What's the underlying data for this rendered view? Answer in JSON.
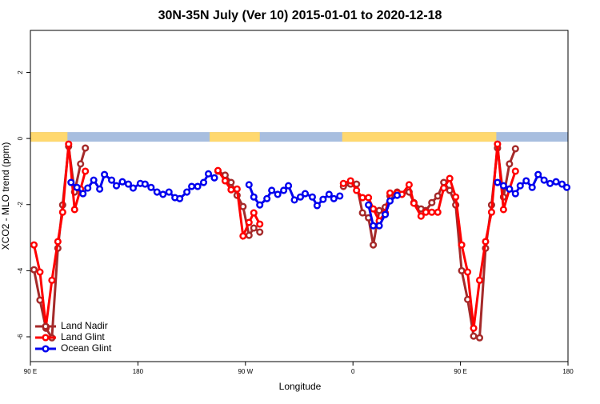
{
  "chart_data": {
    "type": "line",
    "title": "30N-35N July (Ver 10)   2015-01-01 to 2020-12-18",
    "x_label": "Longitude",
    "y_label": "XCO2 - MLO trend (ppm)",
    "xlim": [
      90,
      540
    ],
    "ylim": [
      -6.75,
      3.27
    ],
    "xticks": [
      {
        "value": 90,
        "label": "90 E"
      },
      {
        "value": 180,
        "label": "180"
      },
      {
        "value": 270,
        "label": "90 W"
      },
      {
        "value": 360,
        "label": "0"
      },
      {
        "value": 450,
        "label": "90 E"
      },
      {
        "value": 540,
        "label": "180"
      }
    ],
    "yticks": [
      -6,
      -4,
      -2,
      0,
      2
    ],
    "legend": "bottom-left",
    "land_mask": {
      "land_color": "#ffd86e",
      "ocean_color": "#a8bedf",
      "land": [
        [
          90,
          121
        ],
        [
          240,
          282
        ],
        [
          351,
          480
        ]
      ]
    },
    "series": [
      {
        "name": "Land Nadir",
        "color": "#a52a2a",
        "x": [
          93,
          98,
          103,
          108,
          113,
          117,
          122,
          127,
          132,
          136,
          null,
          247,
          253,
          258,
          263,
          268,
          273,
          277,
          282,
          null,
          352,
          358,
          363,
          368,
          373,
          377,
          382,
          387,
          391,
          397,
          401,
          407,
          411,
          417,
          421,
          426,
          431,
          436,
          441,
          446,
          451,
          456,
          461,
          466,
          471,
          476,
          481,
          486,
          491,
          496
        ],
        "values": [
          -3.97,
          -4.89,
          -5.74,
          -6.03,
          -3.32,
          -2.01,
          -0.24,
          -1.62,
          -0.77,
          -0.29,
          null,
          -0.99,
          -1.11,
          -1.33,
          -1.72,
          -2.06,
          -2.93,
          -2.71,
          -2.83,
          null,
          -1.45,
          -1.38,
          -1.38,
          -2.25,
          -2.4,
          -3.22,
          -2.18,
          -2.08,
          -1.74,
          -1.62,
          -1.69,
          -1.62,
          -1.94,
          -2.13,
          -2.18,
          -1.94,
          -1.74,
          -1.33,
          -1.57,
          -2.01,
          -4.0,
          -4.87,
          -5.98,
          -6.03,
          -3.32,
          -2.01,
          -0.29,
          -1.77,
          -0.77,
          -0.31
        ]
      },
      {
        "name": "Land Glint",
        "color": "#ff0000",
        "x": [
          93,
          98,
          103,
          108,
          113,
          117,
          122,
          127,
          132,
          136,
          null,
          247,
          253,
          258,
          263,
          268,
          273,
          277,
          282,
          null,
          352,
          358,
          363,
          368,
          373,
          377,
          382,
          387,
          391,
          397,
          401,
          407,
          411,
          417,
          421,
          426,
          431,
          436,
          441,
          446,
          451,
          456,
          461,
          466,
          471,
          476,
          481,
          486,
          491,
          496
        ],
        "values": [
          -3.22,
          -4.04,
          -5.69,
          -4.29,
          -3.12,
          -2.23,
          -0.17,
          -2.15,
          -1.53,
          -0.99,
          null,
          -0.97,
          -1.28,
          -1.55,
          -1.53,
          -2.95,
          -2.54,
          -2.25,
          -2.59,
          null,
          -1.36,
          -1.28,
          -1.57,
          -1.79,
          -1.79,
          -2.13,
          -2.49,
          -2.25,
          -1.65,
          -1.65,
          -1.69,
          -1.4,
          -1.96,
          -2.35,
          -2.23,
          -2.23,
          -2.23,
          -1.5,
          -1.21,
          -1.77,
          -3.22,
          -4.04,
          -5.74,
          -4.29,
          -3.12,
          -2.23,
          -0.17,
          -2.15,
          -1.53,
          -0.99
        ]
      },
      {
        "name": "Ocean Glint",
        "color": "#0000ee",
        "x": [
          124,
          129,
          134,
          138,
          143,
          148,
          152,
          158,
          162,
          167,
          172,
          176,
          182,
          186,
          191,
          196,
          201,
          206,
          211,
          215,
          221,
          225,
          230,
          235,
          239,
          244,
          null,
          273,
          277,
          282,
          288,
          292,
          297,
          302,
          306,
          311,
          316,
          320,
          326,
          330,
          335,
          340,
          344,
          349,
          null,
          373,
          377,
          382,
          387,
          391,
          397,
          null,
          481,
          486,
          491,
          496,
          500,
          505,
          510,
          515,
          520,
          525,
          530,
          535,
          539
        ],
        "values": [
          -1.33,
          -1.48,
          -1.67,
          -1.5,
          -1.26,
          -1.53,
          -1.09,
          -1.26,
          -1.43,
          -1.31,
          -1.38,
          -1.5,
          -1.36,
          -1.38,
          -1.48,
          -1.62,
          -1.69,
          -1.62,
          -1.79,
          -1.82,
          -1.62,
          -1.45,
          -1.45,
          -1.33,
          -1.07,
          -1.19,
          null,
          -1.4,
          -1.77,
          -2.01,
          -1.82,
          -1.57,
          -1.69,
          -1.57,
          -1.43,
          -1.86,
          -1.77,
          -1.67,
          -1.77,
          -2.03,
          -1.84,
          -1.69,
          -1.82,
          -1.74,
          null,
          -2.01,
          -2.64,
          -2.64,
          -2.3,
          -1.89,
          -1.72,
          null,
          -1.33,
          -1.43,
          -1.53,
          -1.67,
          -1.43,
          -1.28,
          -1.48,
          -1.09,
          -1.26,
          -1.36,
          -1.31,
          -1.38,
          -1.48
        ]
      }
    ]
  }
}
